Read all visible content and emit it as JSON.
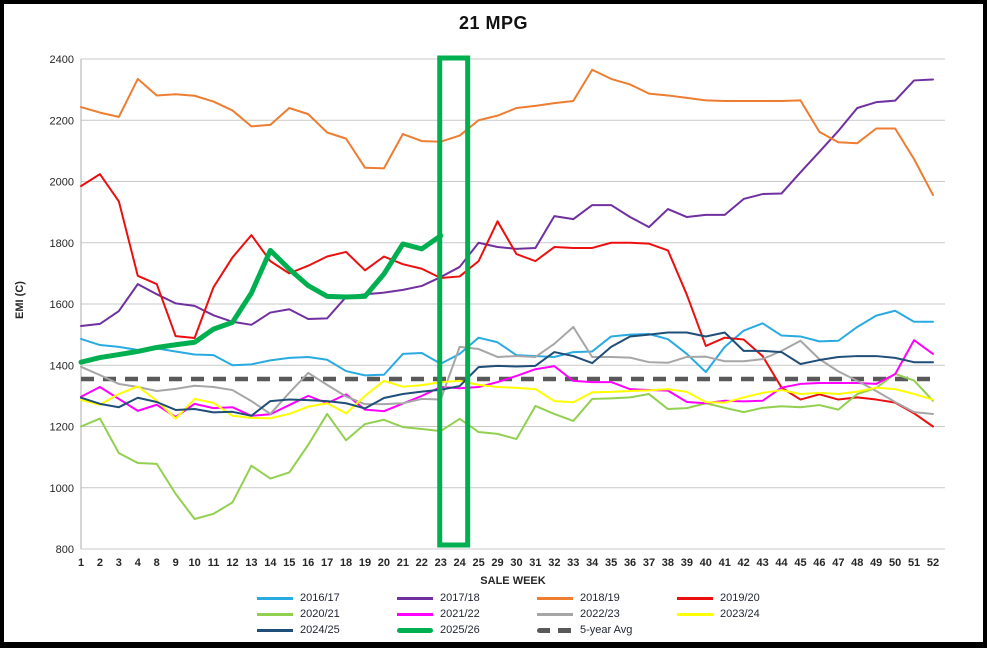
{
  "title": "21 MPG",
  "y_axis": {
    "label": "EMI (C)",
    "min": 800,
    "max": 2400,
    "step": 200,
    "ticks": [
      "800",
      "1000",
      "1200",
      "1400",
      "1600",
      "1800",
      "2000",
      "2200",
      "2400"
    ]
  },
  "x_axis": {
    "label": "SALE WEEK"
  },
  "colors": {
    "grid": "#c9c9c9",
    "axis": "#ababab",
    "tick_text": "#262626",
    "highlight": "#00b050"
  },
  "chart_data": {
    "type": "line",
    "title": "21 MPG",
    "xlabel": "SALE WEEK",
    "ylabel": "EMI (C)",
    "ylim": [
      800,
      2400
    ],
    "grid": "horizontal",
    "legend_position": "bottom",
    "x_categories": [
      "1",
      "2",
      "3",
      "4",
      "8",
      "9",
      "10",
      "11",
      "12",
      "13",
      "14",
      "15",
      "16",
      "17",
      "18",
      "19",
      "20",
      "21",
      "22",
      "23",
      "24",
      "25",
      "29",
      "30",
      "31",
      "32",
      "33",
      "34",
      "35",
      "36",
      "37",
      "38",
      "39",
      "40",
      "41",
      "42",
      "43",
      "44",
      "45",
      "46",
      "47",
      "48",
      "49",
      "50",
      "51",
      "52"
    ],
    "series": [
      {
        "name": "2016/17",
        "color": "#29abe2",
        "width": 2,
        "values": [
          1486,
          1466,
          1460,
          1450,
          1455,
          1445,
          1435,
          1433,
          1400,
          1403,
          1416,
          1424,
          1427,
          1418,
          1381,
          1367,
          1369,
          1437,
          1440,
          1405,
          1437,
          1490,
          1475,
          1433,
          1430,
          1427,
          1443,
          1445,
          1494,
          1500,
          1502,
          1485,
          1437,
          1378,
          1460,
          1513,
          1537,
          1497,
          1494,
          1478,
          1480,
          1525,
          1562,
          1578,
          1542,
          1542
        ]
      },
      {
        "name": "2017/18",
        "color": "#7030a0",
        "width": 2,
        "values": [
          1528,
          1535,
          1577,
          1665,
          1632,
          1602,
          1594,
          1563,
          1542,
          1532,
          1572,
          1583,
          1551,
          1553,
          1623,
          1632,
          1637,
          1646,
          1659,
          1688,
          1721,
          1800,
          1786,
          1780,
          1783,
          1887,
          1877,
          1923,
          1923,
          1884,
          1851,
          1910,
          1884,
          1891,
          1891,
          1943,
          1959,
          1961,
          2030,
          2097,
          2165,
          2240,
          2259,
          2264,
          2330,
          2333
        ]
      },
      {
        "name": "2018/19",
        "color": "#ed7d31",
        "width": 2,
        "values": [
          2243,
          2225,
          2211,
          2335,
          2281,
          2285,
          2280,
          2261,
          2232,
          2180,
          2185,
          2240,
          2220,
          2160,
          2140,
          2045,
          2043,
          2155,
          2132,
          2130,
          2150,
          2200,
          2215,
          2240,
          2247,
          2256,
          2263,
          2365,
          2335,
          2317,
          2287,
          2281,
          2273,
          2265,
          2263,
          2263,
          2263,
          2263,
          2265,
          2162,
          2128,
          2125,
          2173,
          2173,
          2073,
          1956
        ]
      },
      {
        "name": "2019/20",
        "color": "#eb0f0f",
        "width": 2,
        "values": [
          1985,
          2024,
          1935,
          1692,
          1665,
          1495,
          1489,
          1655,
          1752,
          1825,
          1740,
          1700,
          1725,
          1755,
          1770,
          1710,
          1755,
          1730,
          1715,
          1685,
          1690,
          1740,
          1870,
          1763,
          1740,
          1786,
          1783,
          1783,
          1800,
          1800,
          1797,
          1775,
          1630,
          1463,
          1490,
          1484,
          1430,
          1327,
          1288,
          1305,
          1288,
          1295,
          1288,
          1278,
          1243,
          1200
        ]
      },
      {
        "name": "2020/21",
        "color": "#92d050",
        "width": 2,
        "values": [
          1200,
          1226,
          1113,
          1081,
          1078,
          980,
          898,
          915,
          952,
          1072,
          1030,
          1050,
          1140,
          1241,
          1155,
          1208,
          1222,
          1198,
          1192,
          1185,
          1225,
          1182,
          1176,
          1159,
          1267,
          1241,
          1218,
          1290,
          1292,
          1295,
          1306,
          1257,
          1260,
          1276,
          1261,
          1247,
          1261,
          1266,
          1263,
          1270,
          1255,
          1306,
          1326,
          1372,
          1350,
          1284
        ]
      },
      {
        "name": "2021/22",
        "color": "#ff00ff",
        "width": 2,
        "values": [
          1297,
          1329,
          1290,
          1251,
          1271,
          1231,
          1274,
          1260,
          1263,
          1235,
          1240,
          1270,
          1300,
          1276,
          1305,
          1255,
          1250,
          1275,
          1300,
          1329,
          1325,
          1329,
          1345,
          1365,
          1387,
          1397,
          1349,
          1345,
          1345,
          1322,
          1319,
          1317,
          1280,
          1276,
          1284,
          1282,
          1284,
          1327,
          1339,
          1342,
          1342,
          1342,
          1339,
          1371,
          1482,
          1437
        ]
      },
      {
        "name": "2022/23",
        "color": "#a6a6a6",
        "width": 2,
        "values": [
          1395,
          1368,
          1339,
          1329,
          1316,
          1323,
          1333,
          1329,
          1319,
          1283,
          1241,
          1310,
          1375,
          1336,
          1298,
          1273,
          1273,
          1276,
          1290,
          1288,
          1460,
          1453,
          1427,
          1430,
          1427,
          1470,
          1525,
          1427,
          1427,
          1425,
          1410,
          1408,
          1427,
          1428,
          1413,
          1413,
          1420,
          1447,
          1480,
          1420,
          1380,
          1349,
          1316,
          1280,
          1247,
          1241
        ]
      },
      {
        "name": "2023/24",
        "color": "#ffff00",
        "width": 2,
        "values": [
          1287,
          1271,
          1306,
          1331,
          1284,
          1226,
          1290,
          1277,
          1235,
          1228,
          1227,
          1241,
          1265,
          1276,
          1243,
          1300,
          1349,
          1330,
          1335,
          1345,
          1349,
          1336,
          1329,
          1326,
          1322,
          1283,
          1279,
          1312,
          1313,
          1316,
          1318,
          1322,
          1313,
          1279,
          1278,
          1295,
          1310,
          1319,
          1306,
          1310,
          1306,
          1314,
          1327,
          1322,
          1306,
          1288
        ]
      },
      {
        "name": "2024/25",
        "color": "#1f4e79",
        "width": 2,
        "values": [
          1294,
          1274,
          1263,
          1294,
          1280,
          1254,
          1257,
          1246,
          1248,
          1235,
          1283,
          1288,
          1286,
          1283,
          1276,
          1259,
          1293,
          1306,
          1314,
          1320,
          1332,
          1394,
          1398,
          1396,
          1398,
          1443,
          1430,
          1407,
          1460,
          1494,
          1500,
          1507,
          1507,
          1494,
          1507,
          1447,
          1447,
          1443,
          1404,
          1417,
          1427,
          1430,
          1430,
          1424,
          1410,
          1410
        ]
      },
      {
        "name": "2025/26",
        "color": "#00b050",
        "width": 5,
        "values": [
          1410,
          1425,
          1435,
          1445,
          1458,
          1467,
          1475,
          1518,
          1540,
          1636,
          1775,
          1714,
          1660,
          1625,
          1623,
          1625,
          1698,
          1796,
          1780,
          1823,
          null,
          null,
          null,
          null,
          null,
          null,
          null,
          null,
          null,
          null,
          null,
          null,
          null,
          null,
          null,
          null,
          null,
          null,
          null,
          null,
          null,
          null,
          null,
          null,
          null,
          null
        ]
      }
    ],
    "avg_line": {
      "name": "5-year Avg",
      "value": 1355,
      "color": "#595959",
      "width": 4.5,
      "dash": "13 9"
    },
    "highlight": {
      "week_from": "23",
      "week_to": "24",
      "color": "#00b050",
      "stroke_width": 5
    }
  }
}
